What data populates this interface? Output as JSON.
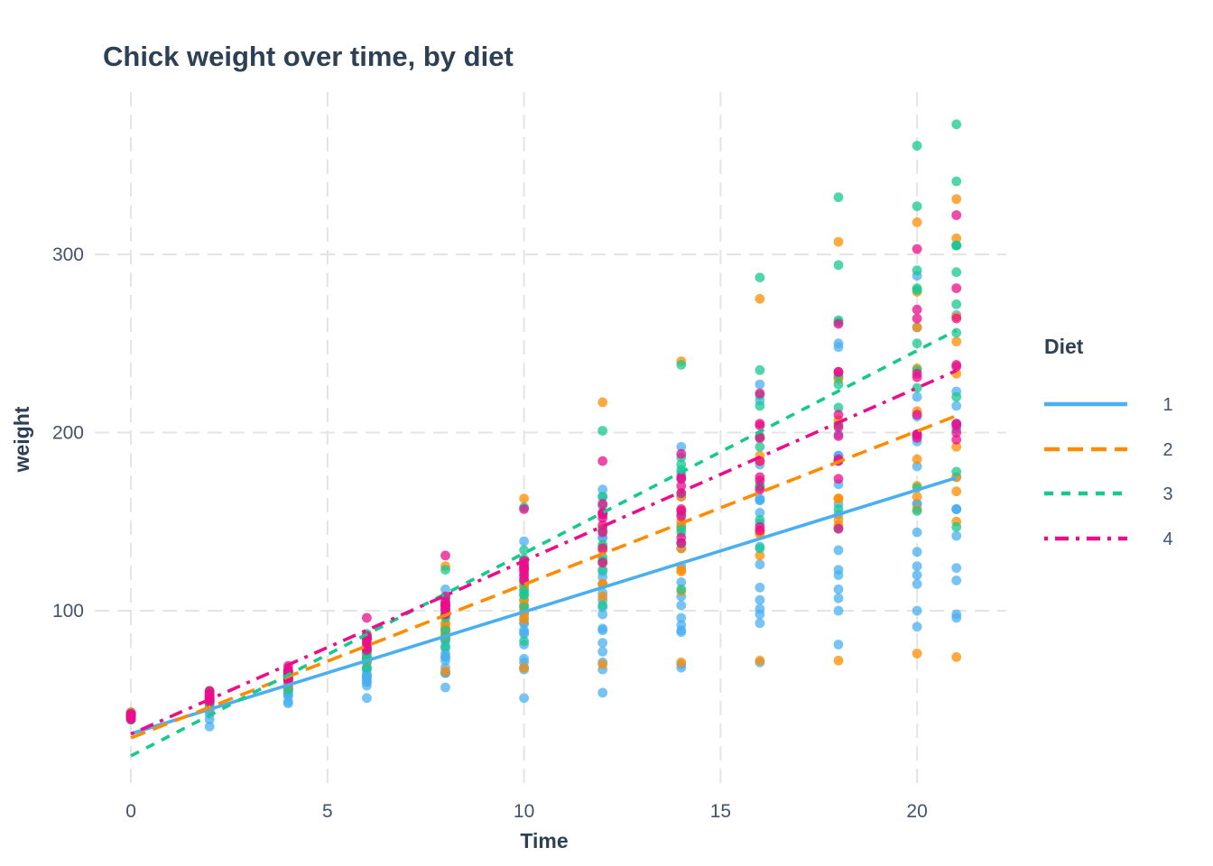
{
  "chart_data": {
    "type": "scatter",
    "title": "Chick weight over time, by diet",
    "xlabel": "Time",
    "ylabel": "weight",
    "x_ticks": [
      0,
      5,
      10,
      15,
      20
    ],
    "y_ticks": [
      100,
      200,
      300
    ],
    "x_domain": [
      -0.92,
      22.27
    ],
    "y_domain": [
      2.3,
      391.1
    ],
    "grid": "dashed major gridlines only, light gray, no axis lines",
    "grid_color": "#E4E4E4",
    "smooth": "linear regression per diet, drawn from Time 0 to 21",
    "point_opacity": 0.75,
    "times": [
      0,
      2,
      4,
      6,
      8,
      10,
      12,
      14,
      16,
      18,
      20,
      21
    ],
    "legend": {
      "title": "Diet",
      "position": "right",
      "entries": [
        "1",
        "2",
        "3",
        "4"
      ]
    },
    "series": [
      {
        "label": "1",
        "color": "#4AAFF0",
        "dash": "",
        "chicks": [
          [
            42,
            51,
            59,
            64,
            76,
            93,
            106,
            125,
            149,
            171,
            199,
            205
          ],
          [
            40,
            49,
            58,
            72,
            84,
            103,
            122,
            138,
            162,
            187,
            209,
            215
          ],
          [
            43,
            39,
            55,
            67,
            84,
            99,
            115,
            138,
            163,
            187,
            198,
            202
          ],
          [
            42,
            49,
            56,
            67,
            74,
            87,
            102,
            108,
            136,
            154,
            160,
            157
          ],
          [
            41,
            42,
            48,
            60,
            79,
            106,
            141,
            164,
            197,
            199,
            220,
            223
          ],
          [
            41,
            49,
            59,
            74,
            97,
            124,
            141,
            148,
            155,
            160,
            160,
            157
          ],
          [
            41,
            49,
            57,
            71,
            89,
            112,
            146,
            174,
            218,
            250,
            288,
            305
          ],
          [
            42,
            50,
            61,
            71,
            84,
            93,
            110,
            116,
            126,
            134,
            125
          ],
          [
            42,
            51,
            59,
            68,
            85,
            96,
            90,
            92,
            93,
            100,
            100,
            98
          ],
          [
            41,
            44,
            52,
            63,
            74,
            81,
            89,
            96,
            101,
            112,
            120,
            124
          ],
          [
            43,
            51,
            63,
            84,
            112,
            139,
            168,
            177,
            182,
            184,
            181,
            175
          ],
          [
            41,
            49,
            56,
            62,
            72,
            88,
            119,
            135,
            162,
            185,
            195,
            205
          ],
          [
            41,
            48,
            53,
            60,
            65,
            67,
            71,
            70,
            71,
            81,
            91,
            96
          ],
          [
            41,
            49,
            62,
            79,
            101,
            128,
            164,
            192,
            227,
            248,
            259,
            266
          ],
          [
            41,
            49,
            56,
            64,
            68,
            68,
            67,
            68
          ],
          [
            41,
            45,
            49,
            51,
            57,
            51,
            54
          ],
          [
            42,
            51,
            61,
            72,
            83,
            89,
            98,
            103,
            113,
            123,
            133,
            142
          ],
          [
            39,
            35
          ],
          [
            43,
            48,
            55,
            62,
            65,
            71,
            82,
            88,
            106,
            120,
            144,
            157
          ],
          [
            41,
            47,
            54,
            58,
            65,
            73,
            77,
            89,
            98,
            107,
            115,
            117
          ]
        ]
      },
      {
        "label": "2",
        "color": "#FF8C00",
        "dash": "17 9",
        "chicks": [
          [
            40,
            50,
            62,
            86,
            125,
            163,
            217,
            240,
            275,
            307,
            318,
            331
          ],
          [
            41,
            55,
            64,
            77,
            90,
            95,
            108,
            111,
            131,
            148,
            164,
            167
          ],
          [
            43,
            52,
            61,
            73,
            90,
            103,
            127,
            135,
            145,
            163,
            170,
            175
          ],
          [
            42,
            52,
            58,
            74,
            66,
            68,
            70,
            71,
            72,
            72,
            76,
            74
          ],
          [
            40,
            49,
            62,
            78,
            102,
            124,
            146,
            164,
            197,
            231,
            259,
            265
          ],
          [
            42,
            48,
            57,
            74,
            93,
            114,
            136,
            147,
            169,
            205,
            236,
            251
          ],
          [
            39,
            46,
            58,
            73,
            87,
            100,
            115,
            123,
            144,
            163,
            185,
            192
          ],
          [
            39,
            46,
            58,
            73,
            92,
            114,
            145,
            156,
            184,
            207,
            212,
            233
          ],
          [
            39,
            48,
            59,
            74,
            87,
            106,
            134,
            150,
            187,
            230,
            279,
            309
          ],
          [
            42,
            48,
            59,
            72,
            85,
            98,
            115,
            122,
            143,
            151,
            157,
            150
          ]
        ]
      },
      {
        "label": "3",
        "color": "#17C88F",
        "dash": "10 9",
        "chicks": [
          [
            42,
            53,
            62,
            73,
            85,
            102,
            123,
            138,
            170,
            204,
            235,
            256
          ],
          [
            41,
            49,
            65,
            82,
            107,
            129,
            159,
            179,
            221,
            263,
            291,
            305
          ],
          [
            39,
            50,
            63,
            77,
            96,
            111,
            137,
            144,
            151,
            146,
            156,
            147
          ],
          [
            41,
            49,
            63,
            85,
            107,
            134,
            164,
            186,
            235,
            294,
            327,
            341
          ],
          [
            41,
            53,
            64,
            87,
            123,
            158,
            201,
            238,
            287,
            332,
            361,
            373
          ],
          [
            39,
            48,
            61,
            76,
            98,
            116,
            145,
            166,
            198,
            227,
            225,
            220
          ],
          [
            41,
            48,
            56,
            68,
            80,
            83,
            103,
            112,
            135,
            157,
            169,
            178
          ],
          [
            41,
            49,
            61,
            74,
            98,
            109,
            128,
            154,
            192,
            232,
            280,
            290
          ],
          [
            42,
            50,
            61,
            78,
            89,
            109,
            130,
            146,
            170,
            214,
            250,
            272
          ],
          [
            41,
            55,
            66,
            79,
            101,
            120,
            154,
            182,
            215,
            262,
            281,
            305
          ]
        ]
      },
      {
        "label": "4",
        "color": "#EB0D8C",
        "dash": "4 8 15 8",
        "chicks": [
          [
            42,
            51,
            66,
            85,
            103,
            124,
            155,
            153,
            175,
            184,
            199,
            204
          ],
          [
            42,
            49,
            63,
            84,
            103,
            126,
            160,
            174,
            204,
            234,
            269,
            281
          ],
          [
            42,
            55,
            69,
            96,
            131,
            157,
            184,
            188,
            197,
            198,
            199,
            200
          ],
          [
            42,
            51,
            65,
            86,
            103,
            118,
            127,
            138,
            145,
            146
          ],
          [
            41,
            50,
            61,
            78,
            98,
            117,
            135,
            141,
            147,
            174,
            197,
            196
          ],
          [
            40,
            52,
            62,
            82,
            101,
            120,
            144,
            156,
            173,
            210,
            231,
            238
          ],
          [
            41,
            53,
            66,
            79,
            100,
            123,
            148,
            157,
            168,
            185,
            210,
            205
          ],
          [
            39,
            50,
            62,
            80,
            104,
            125,
            154,
            170,
            222,
            261,
            303,
            322
          ],
          [
            40,
            53,
            64,
            85,
            108,
            128,
            152,
            166,
            184,
            203,
            233,
            237
          ],
          [
            41,
            54,
            67,
            84,
            105,
            122,
            155,
            175,
            205,
            234,
            264,
            264
          ]
        ]
      }
    ]
  },
  "text_colors": {
    "title": "#2E4053",
    "axis_titles": "#2E4053",
    "tick_labels": "#42526B"
  }
}
